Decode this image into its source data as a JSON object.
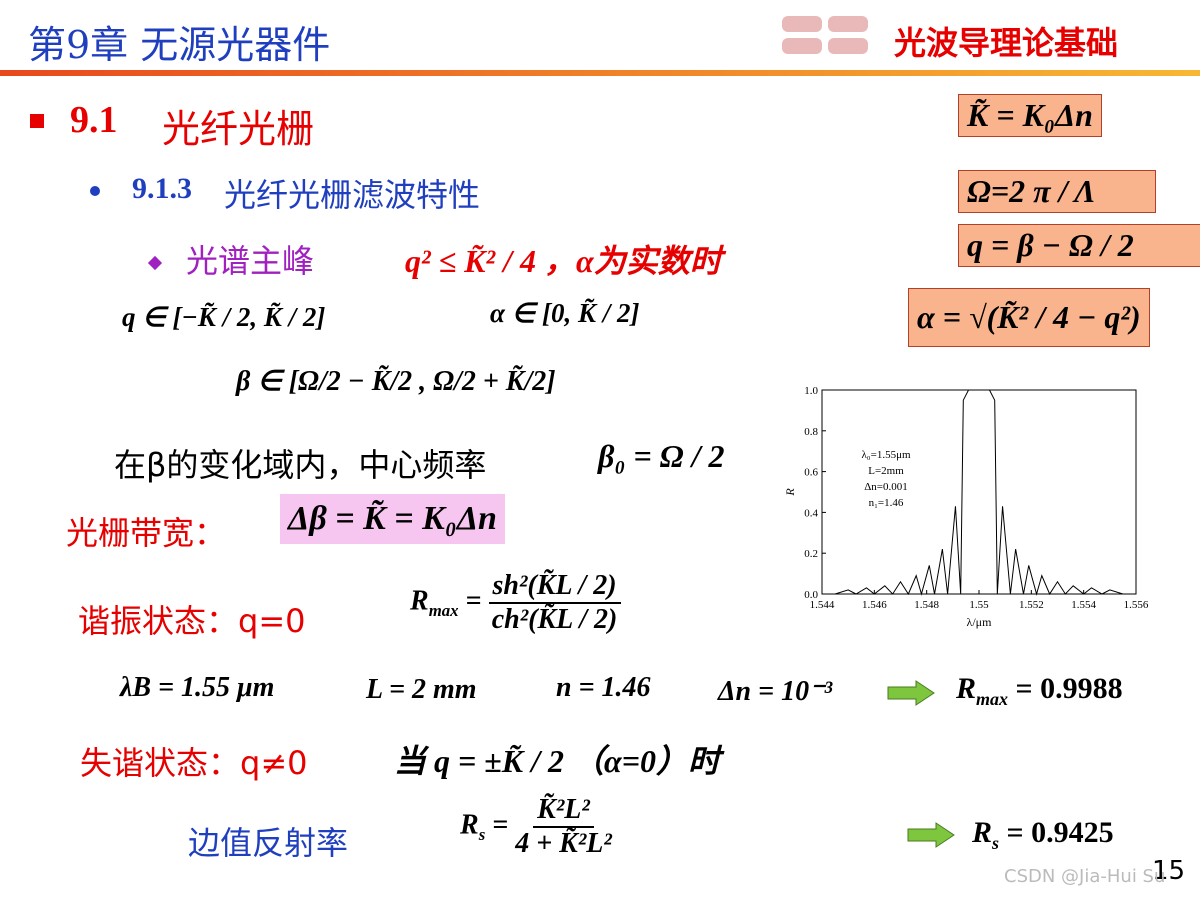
{
  "header": {
    "title": "第9章 无源光器件",
    "course": "光波导理论基础"
  },
  "section": {
    "number": "9.1",
    "title": "光纤光栅"
  },
  "subsection": {
    "number": "9.1.3",
    "title": "光纤光栅滤波特性"
  },
  "bullet": {
    "label": "光谱主峰",
    "condition": "q² ≤ K̃² / 4 ，α为实数时"
  },
  "boxes": [
    "K̃ = K₀Δn",
    "Ω=2 π / Λ",
    "q = β − Ω / 2",
    "α = √(K̃² / 4 − q²)"
  ],
  "ranges": [
    "q ∈ [−K̃ / 2, K̃ / 2]",
    "α ∈ [0, K̃ / 2]",
    "β ∈ [Ω/2 − K̃/2 , Ω/2 + K̃/2]"
  ],
  "center_frequency": {
    "text": "在β的变化域内，中心频率",
    "formula": "β₀ = Ω / 2"
  },
  "bandwidth": {
    "label": "光栅带宽：",
    "formula": "Δβ = K̃ = K₀Δn"
  },
  "resonance": {
    "label": "谐振状态：q=0",
    "symbol": "R",
    "subscript": "max",
    "numerator": "sh²(K̃L / 2)",
    "denominator": "ch²(K̃L / 2)"
  },
  "parameters": [
    "λB = 1.55 μm",
    "L = 2 mm",
    "n = 1.46",
    "Δn = 10⁻³"
  ],
  "rmax_result": {
    "symbol": "R",
    "subscript": "max",
    "value": "= 0.9988"
  },
  "detuned": {
    "label": "失谐状态：q≠0",
    "condition": "当  q = ±K̃ / 2 （α=0）时"
  },
  "edge": {
    "label": "边值反射率",
    "symbol": "R",
    "subscript": "s",
    "numerator": "K̃²L²",
    "denominator": "4 + K̃²L²",
    "result_value": "= 0.9425"
  },
  "page_number": "15",
  "watermark": "CSDN @Jia-Hui Su",
  "chart_data": {
    "type": "line",
    "x_label": "λ/μm",
    "y_label": "R",
    "annotations": [
      "λ₀=1.55μm",
      "L=2mm",
      "Δn=0.001",
      "n₁=1.46"
    ],
    "color": "#000000",
    "x": [
      1.5445,
      1.545,
      1.5453,
      1.5457,
      1.546,
      1.5464,
      1.5467,
      1.547,
      1.5473,
      1.5476,
      1.5478,
      1.5481,
      1.5483,
      1.5486,
      1.5488,
      1.5491,
      1.5493,
      1.5494,
      1.5496,
      1.5504,
      1.5506,
      1.5507,
      1.5509,
      1.5512,
      1.5514,
      1.5517,
      1.5519,
      1.5522,
      1.5524,
      1.5527,
      1.553,
      1.5533,
      1.5536,
      1.554,
      1.5543,
      1.5547,
      1.555,
      1.5555
    ],
    "values": [
      0,
      0.02,
      0,
      0.03,
      0,
      0.04,
      0,
      0.06,
      0,
      0.09,
      0,
      0.14,
      0,
      0.22,
      0,
      0.43,
      0,
      0.95,
      1,
      1,
      0.95,
      0,
      0.43,
      0,
      0.22,
      0,
      0.14,
      0,
      0.09,
      0,
      0.06,
      0,
      0.04,
      0,
      0.03,
      0,
      0.02,
      0
    ],
    "xlim": [
      1.544,
      1.556
    ],
    "ylim": [
      0,
      1
    ],
    "xticks": [
      1.544,
      1.546,
      1.548,
      1.55,
      1.552,
      1.554,
      1.556
    ],
    "yticks": [
      {
        "value": 0,
        "label": "0.0"
      },
      0.2,
      0.4,
      0.6,
      0.8,
      {
        "value": 1,
        "label": "1.0"
      }
    ]
  }
}
